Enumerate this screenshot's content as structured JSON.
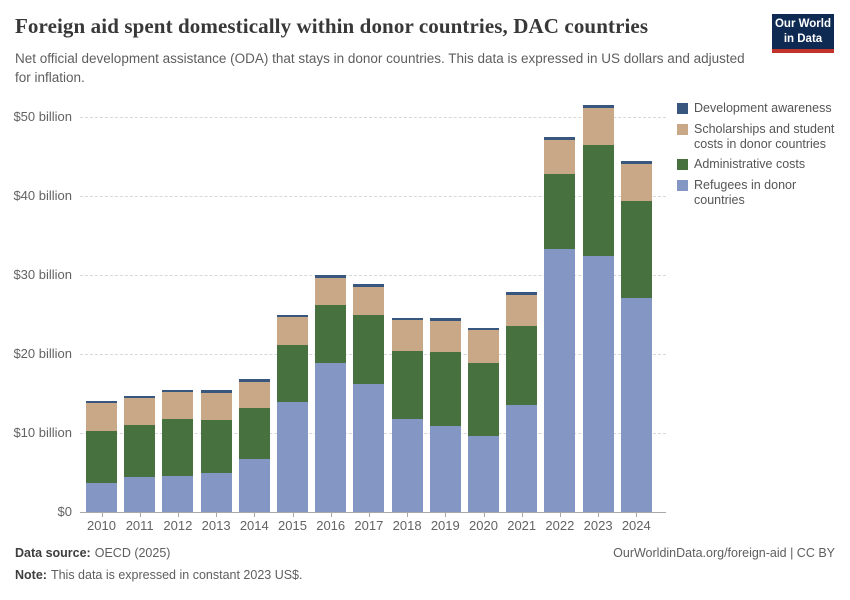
{
  "header": {
    "title": "Foreign aid spent domestically within donor countries, DAC countries",
    "subtitle": "Net official development assistance (ODA) that stays in donor countries. This data is expressed in US dollars and adjusted for inflation.",
    "logo": {
      "line1": "Our World",
      "line2": "in Data"
    }
  },
  "chart_data": {
    "type": "bar",
    "stacked": true,
    "title": "Foreign aid spent domestically within donor countries, DAC countries",
    "categories": [
      "2010",
      "2011",
      "2012",
      "2013",
      "2014",
      "2015",
      "2016",
      "2017",
      "2018",
      "2019",
      "2020",
      "2021",
      "2022",
      "2023",
      "2024"
    ],
    "series": [
      {
        "name": "Refugees in donor countries",
        "color": "#8496c4",
        "values": [
          3.7,
          4.4,
          4.6,
          4.9,
          6.7,
          13.9,
          18.9,
          16.2,
          11.8,
          10.9,
          9.6,
          13.5,
          33.3,
          32.4,
          27.1
        ]
      },
      {
        "name": "Administrative costs",
        "color": "#47713f",
        "values": [
          6.5,
          6.6,
          7.2,
          6.8,
          6.5,
          7.2,
          7.3,
          8.7,
          8.6,
          9.4,
          9.2,
          10.1,
          9.5,
          14.1,
          12.3
        ]
      },
      {
        "name": "Scholarships and student costs in donor countries",
        "color": "#c9a887",
        "values": [
          3.6,
          3.4,
          3.4,
          3.4,
          3.3,
          3.6,
          3.4,
          3.6,
          3.9,
          3.9,
          4.2,
          3.9,
          4.3,
          4.6,
          4.7
        ]
      },
      {
        "name": "Development awareness",
        "color": "#38567e",
        "values": [
          0.3,
          0.3,
          0.3,
          0.3,
          0.3,
          0.3,
          0.4,
          0.4,
          0.3,
          0.3,
          0.3,
          0.4,
          0.4,
          0.4,
          0.3
        ]
      }
    ],
    "stack_order": "bottom-to-top",
    "y_ticks": [
      {
        "value": 0,
        "label": "$0"
      },
      {
        "value": 10,
        "label": "$10 billion"
      },
      {
        "value": 20,
        "label": "$20 billion"
      },
      {
        "value": 30,
        "label": "$30 billion"
      },
      {
        "value": 40,
        "label": "$40 billion"
      },
      {
        "value": 50,
        "label": "$50 billion"
      }
    ],
    "ylim": [
      0,
      52
    ],
    "xlabel": "",
    "ylabel": "",
    "grid": "dashed-horizontal",
    "legend_position": "right",
    "legend_order_top_to_bottom": [
      "Development awareness",
      "Scholarships and student costs in donor countries",
      "Administrative costs",
      "Refugees in donor countries"
    ]
  },
  "footer": {
    "datasource_label": "Data source:",
    "datasource_value": "OECD (2025)",
    "note_label": "Note:",
    "note_value": "This data is expressed in constant 2023 US$.",
    "credit": "OurWorldinData.org/foreign-aid | CC BY"
  },
  "colors": {
    "logo_bg": "#0e2a52",
    "logo_stripe": "#c0332b",
    "text_dark": "#383838",
    "text_gray": "#5e5e5e"
  }
}
